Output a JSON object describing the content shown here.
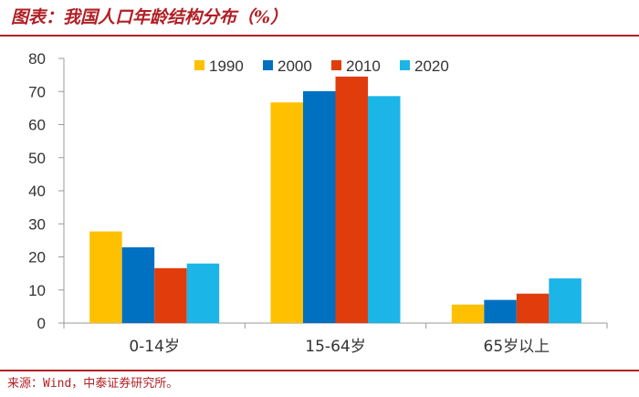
{
  "header": {
    "title": "图表：我国人口年龄结构分布（%）"
  },
  "footer": {
    "source": "来源：Wind，中泰证券研究所。"
  },
  "chart_data": {
    "type": "bar",
    "title": "图表：我国人口年龄结构分布（%）",
    "xlabel": "",
    "ylabel": "",
    "categories": [
      "0-14岁",
      "15-64岁",
      "65岁以上"
    ],
    "ylim": [
      0,
      80
    ],
    "yticks": [
      0,
      10,
      20,
      30,
      40,
      50,
      60,
      70,
      80
    ],
    "grid": false,
    "legend": "top-right",
    "series": [
      {
        "name": "1990",
        "color": "#ffc000",
        "values": [
          27.7,
          66.7,
          5.6
        ]
      },
      {
        "name": "2000",
        "color": "#0070c0",
        "values": [
          22.9,
          70.1,
          7.0
        ]
      },
      {
        "name": "2010",
        "color": "#e03c0c",
        "values": [
          16.6,
          74.5,
          8.9
        ]
      },
      {
        "name": "2020",
        "color": "#1bb5e8",
        "values": [
          18.0,
          68.6,
          13.5
        ]
      }
    ]
  }
}
